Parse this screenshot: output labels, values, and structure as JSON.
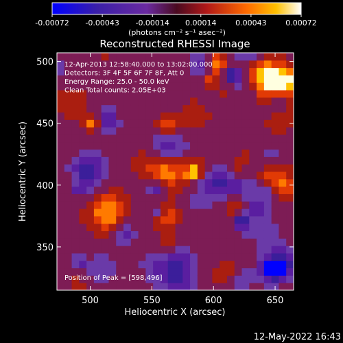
{
  "chart_data": {
    "type": "heatmap",
    "title": "Reconstructed RHESSI Image",
    "xlabel": "Heliocentric X (arcsec)",
    "ylabel": "Heliocentric Y (arcsec)",
    "xlim": [
      473,
      665
    ],
    "ylim": [
      315,
      507
    ],
    "xticks": [
      500,
      550,
      600,
      650
    ],
    "yticks": [
      350,
      400,
      450,
      500
    ],
    "colorbar": {
      "ticks": [
        "-0.00072",
        "-0.00043",
        "-0.00014",
        "0.00014",
        "0.00043",
        "0.00072"
      ],
      "unit": "(photons cm⁻² s⁻¹ asec⁻²)",
      "range": [
        -0.00072,
        0.00072
      ]
    },
    "annotations": [
      "12-Apr-2013 12:58:40.000 to 13:02:00.000",
      "Detectors: 3F 4F 5F 6F 7F 8F, Att 0",
      "Energy Range: 25.0 - 50.0 keV",
      "Clean     Total counts: 2.05E+03"
    ],
    "peak_label": "Position of Peak = [598,496]",
    "peak": [
      598,
      496
    ],
    "colors": [
      "#0000ff",
      "#3b1e9a",
      "#5a1ea0",
      "#6a3aa8",
      "#7d1c55",
      "#aa1e10",
      "#e13a05",
      "#ff7a00",
      "#ffc300",
      "#ffffe0"
    ]
  },
  "footer": {
    "date": "12-May-2022 16:43"
  }
}
